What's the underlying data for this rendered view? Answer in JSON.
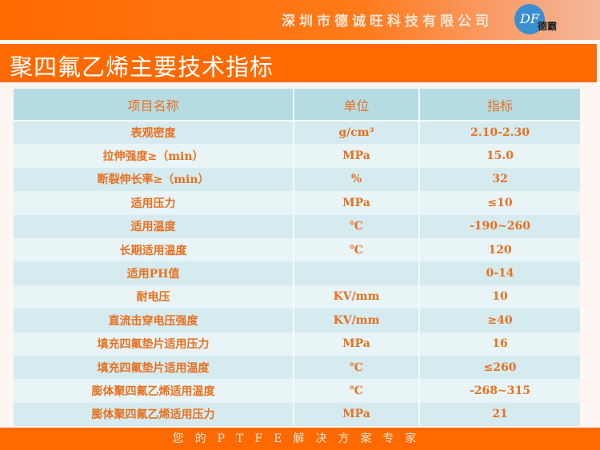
{
  "header": {
    "company": "深圳市德诚旺科技有限公司",
    "logo_text": "德霸",
    "logo_mark": "DF"
  },
  "title": "聚四氟乙烯主要技术指标",
  "table": {
    "columns": [
      "项目名称",
      "单位",
      "指标"
    ],
    "rows": [
      [
        "表观密度",
        "g/cm³",
        "2.10-2.30"
      ],
      [
        "拉伸强度≥（min）",
        "MPa",
        "15.0"
      ],
      [
        "断裂伸长率≥（min）",
        "%",
        "32"
      ],
      [
        "适用压力",
        "MPa",
        "≤10"
      ],
      [
        "适用温度",
        "℃",
        "-190~260"
      ],
      [
        "长期适用温度",
        "℃",
        "120"
      ],
      [
        "适用PH值",
        "",
        "0-14"
      ],
      [
        "耐电压",
        "KV/mm",
        "10"
      ],
      [
        "直流击穿电压强度",
        "KV/mm",
        "≥40"
      ],
      [
        "填充四氟垫片适用压力",
        "MPa",
        "16"
      ],
      [
        "填充四氟垫片适用温度",
        "℃",
        "≤260"
      ],
      [
        "膨体聚四氟乙烯适用温度",
        "℃",
        "-268~315"
      ],
      [
        "膨体聚四氟乙烯适用压力",
        "MPa",
        "21"
      ]
    ]
  },
  "footer": "您的PTFE解决方案专家",
  "colors": {
    "accent": "#ff6a00",
    "text": "#e8701f",
    "header_row": "#b6dce3"
  }
}
